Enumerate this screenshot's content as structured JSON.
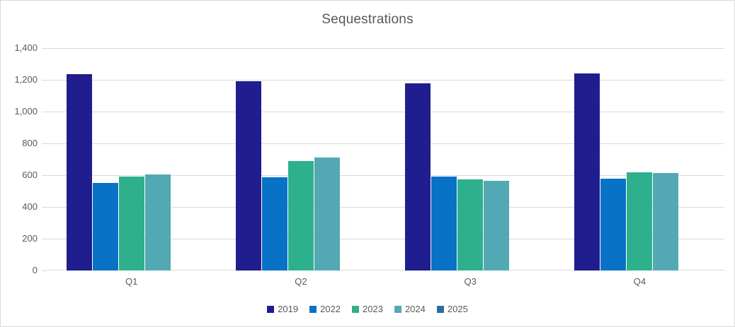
{
  "chart_data": {
    "type": "bar",
    "title": "Sequestrations",
    "xlabel": "",
    "ylabel": "",
    "categories": [
      "Q1",
      "Q2",
      "Q3",
      "Q4"
    ],
    "series": [
      {
        "name": "2019",
        "color": "#201D8F",
        "values": [
          1235,
          1190,
          1180,
          1240
        ]
      },
      {
        "name": "2022",
        "color": "#0872C6",
        "values": [
          550,
          585,
          590,
          580
        ]
      },
      {
        "name": "2023",
        "color": "#2FB08D",
        "values": [
          590,
          690,
          575,
          620
        ]
      },
      {
        "name": "2024",
        "color": "#52A9B4",
        "values": [
          605,
          710,
          565,
          615
        ]
      },
      {
        "name": "2025",
        "color": "#2E6C9D",
        "values": [
          0,
          0,
          0,
          0
        ]
      }
    ],
    "ylim": [
      0,
      1400
    ],
    "ytick_step": 200,
    "ytick_labels": [
      "0",
      "200",
      "400",
      "600",
      "800",
      "1,000",
      "1,200",
      "1,400"
    ],
    "grid": true,
    "legend_position": "bottom"
  },
  "styles": {
    "text_color": "#595959",
    "grid_color": "#D9D9D9",
    "frame_border_color": "#D9D9D9",
    "background": "#FFFFFF"
  }
}
